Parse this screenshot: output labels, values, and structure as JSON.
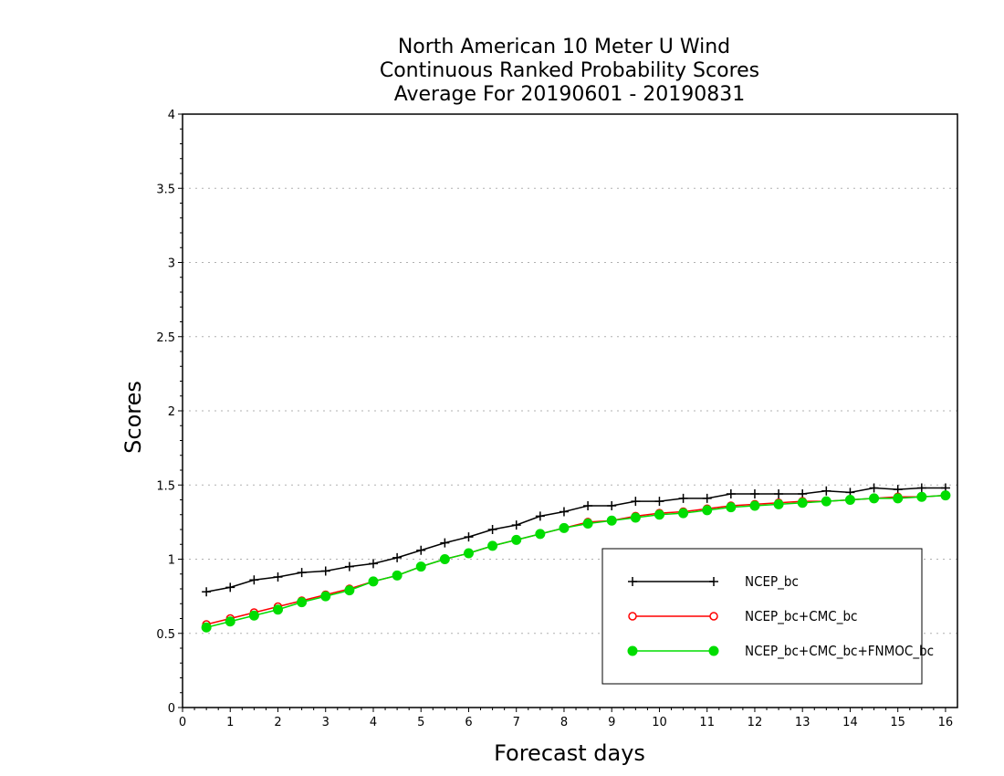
{
  "chart_data": {
    "type": "line",
    "title": [
      "North American 10 Meter U Wind",
      "Continuous Ranked Probability Scores",
      "Average For 20190601 - 20190831"
    ],
    "xlabel": "Forecast days",
    "ylabel": "Scores",
    "xlim": [
      0,
      16.25
    ],
    "ylim": [
      0,
      4
    ],
    "xticks": [
      0,
      1,
      2,
      3,
      4,
      5,
      6,
      7,
      8,
      9,
      10,
      11,
      12,
      13,
      14,
      15,
      16
    ],
    "yticks": [
      0,
      0.5,
      1,
      1.5,
      2,
      2.5,
      3,
      3.5,
      4
    ],
    "ytick_labels": [
      "0",
      "0.5",
      "1",
      "1.5",
      "2",
      "2.5",
      "3",
      "3.5",
      "4"
    ],
    "grid": "horizontal dotted",
    "legend_position": "bottom-right",
    "x": [
      0.5,
      1,
      1.5,
      2,
      2.5,
      3,
      3.5,
      4,
      4.5,
      5,
      5.5,
      6,
      6.5,
      7,
      7.5,
      8,
      8.5,
      9,
      9.5,
      10,
      10.5,
      11,
      11.5,
      12,
      12.5,
      13,
      13.5,
      14,
      14.5,
      15,
      15.5,
      16
    ],
    "series": [
      {
        "name": "NCEP_bc",
        "color": "#000000",
        "marker": "plus",
        "values": [
          0.78,
          0.81,
          0.86,
          0.88,
          0.91,
          0.92,
          0.95,
          0.97,
          1.01,
          1.06,
          1.11,
          1.15,
          1.2,
          1.23,
          1.29,
          1.32,
          1.36,
          1.36,
          1.39,
          1.39,
          1.41,
          1.41,
          1.44,
          1.44,
          1.44,
          1.44,
          1.46,
          1.45,
          1.48,
          1.47,
          1.48,
          1.48
        ]
      },
      {
        "name": "NCEP_bc+CMC_bc",
        "color": "#ff0000",
        "marker": "open-circle",
        "values": [
          0.56,
          0.6,
          0.64,
          0.68,
          0.72,
          0.76,
          0.8,
          0.85,
          0.89,
          0.95,
          1.0,
          1.04,
          1.09,
          1.13,
          1.17,
          1.21,
          1.25,
          1.26,
          1.29,
          1.31,
          1.32,
          1.34,
          1.36,
          1.37,
          1.38,
          1.39,
          1.39,
          1.4,
          1.41,
          1.42,
          1.42,
          1.43
        ]
      },
      {
        "name": "NCEP_bc+CMC_bc+FNMOC_bc",
        "color": "#00dd00",
        "marker": "filled-circle",
        "values": [
          0.54,
          0.58,
          0.62,
          0.66,
          0.71,
          0.75,
          0.79,
          0.85,
          0.89,
          0.95,
          1.0,
          1.04,
          1.09,
          1.13,
          1.17,
          1.21,
          1.24,
          1.26,
          1.28,
          1.3,
          1.31,
          1.33,
          1.35,
          1.36,
          1.37,
          1.38,
          1.39,
          1.4,
          1.41,
          1.41,
          1.42,
          1.43
        ]
      }
    ]
  }
}
